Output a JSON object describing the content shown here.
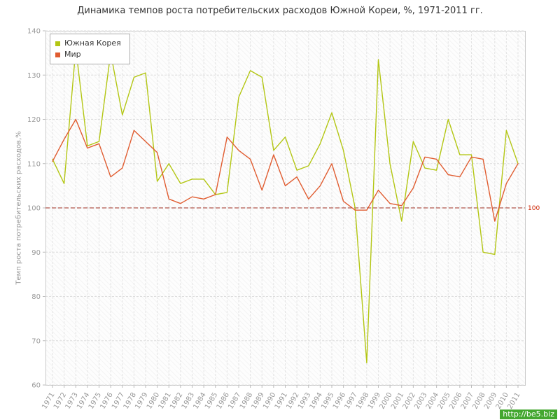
{
  "page": {
    "title": "Динамика темпов роста потребительских расходов Южной Кореи, %, 1971-2011 гг.",
    "watermark": "http://be5.biz"
  },
  "chart_data": {
    "type": "line",
    "title": "Динамика темпов роста потребительских расходов Южной Кореи, %, 1971-2011 гг.",
    "xlabel": "",
    "ylabel": "Темп роста потребительских расходов,%",
    "ylim": [
      60,
      140
    ],
    "y_ticks": [
      60,
      70,
      80,
      90,
      100,
      110,
      120,
      130,
      140
    ],
    "grid": true,
    "legend_position": "top-left",
    "reference_line": {
      "value": 100,
      "label": "100",
      "line_color": "#9e2b1e",
      "label_color": "#cc2200"
    },
    "x": [
      "1971",
      "1972",
      "1973",
      "1974",
      "1975",
      "1976",
      "1977",
      "1978",
      "1979",
      "1980",
      "1981",
      "1982",
      "1983",
      "1984",
      "1985",
      "1986",
      "1987",
      "1988",
      "1989",
      "1990",
      "1991",
      "1992",
      "1993",
      "1994",
      "1995",
      "1996",
      "1997",
      "1998",
      "1999",
      "2000",
      "2001",
      "2002",
      "2003",
      "2004",
      "2005",
      "2006",
      "2007",
      "2008",
      "2009",
      "2010",
      "2011"
    ],
    "series": [
      {
        "name": "Южная Корея",
        "color": "#b3c613",
        "values": [
          111,
          105.5,
          136,
          114,
          115,
          135,
          121,
          129.5,
          130.5,
          106,
          110,
          105.5,
          106.5,
          106.5,
          103,
          103.5,
          125,
          131,
          129.5,
          113,
          116,
          108.5,
          109.5,
          114.5,
          121.5,
          113,
          100,
          65,
          133.5,
          110,
          97,
          115,
          109,
          108.5,
          120,
          112,
          112,
          90,
          89.5,
          117.5,
          110
        ]
      },
      {
        "name": "Мир",
        "color": "#e05c30",
        "values": [
          110.5,
          115.5,
          120,
          113.5,
          114.5,
          107,
          109,
          117.5,
          115,
          112.5,
          102,
          101,
          102.5,
          102,
          103,
          116,
          113,
          111,
          104,
          112,
          105,
          107,
          102,
          105,
          110,
          101.5,
          99.5,
          99.5,
          104,
          101,
          100.5,
          104.5,
          111.5,
          111,
          107.5,
          107,
          111.5,
          111,
          97,
          105.5,
          110
        ]
      }
    ]
  }
}
